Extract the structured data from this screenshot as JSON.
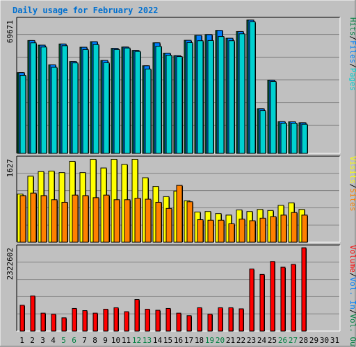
{
  "title": "Daily usage for February 2022",
  "colors": {
    "background": "#c0c0c0",
    "title": "#0070d0",
    "hits": "#008040",
    "files": "#0080ff",
    "pages": "#00d0d0",
    "visits": "#ffff00",
    "sites": "#ff8000",
    "vol_out": "#008040",
    "vol_in": "#0080ff",
    "volume": "#ff0000",
    "weekend_label": "#008040",
    "grid": "#808080"
  },
  "weekend_days": [
    5,
    6,
    12,
    13,
    19,
    20,
    26,
    27
  ],
  "chart_data": [
    {
      "type": "bar",
      "title": "Daily usage for February 2022",
      "panel": "hits-files-pages",
      "ylabel": "69671",
      "ymax": 69671,
      "legend": [
        "Hits",
        "/",
        "Files",
        "/",
        "Pages"
      ],
      "categories": [
        "1",
        "2",
        "3",
        "4",
        "5",
        "6",
        "7",
        "8",
        "9",
        "10",
        "11",
        "12",
        "13",
        "14",
        "15",
        "16",
        "17",
        "18",
        "19",
        "20",
        "21",
        "22",
        "23",
        "24",
        "25",
        "26",
        "27",
        "28",
        "29",
        "30",
        "31"
      ],
      "series": [
        {
          "name": "Hits",
          "values": [
            42200,
            59000,
            56600,
            46300,
            57200,
            48000,
            55500,
            58400,
            48600,
            54900,
            55600,
            53800,
            45800,
            57800,
            52400,
            51100,
            59100,
            61700,
            62100,
            64300,
            60200,
            63700,
            69700,
            23300,
            38300,
            16600,
            16500,
            16000,
            null,
            null,
            null
          ]
        },
        {
          "name": "Files",
          "values": [
            42200,
            59000,
            56600,
            46300,
            57200,
            48000,
            55500,
            58400,
            48600,
            54900,
            55600,
            53800,
            45800,
            57800,
            52400,
            51100,
            59100,
            61700,
            62100,
            64300,
            60200,
            63700,
            69700,
            23300,
            38300,
            16600,
            16500,
            16000,
            null,
            null,
            null
          ]
        },
        {
          "name": "Pages",
          "values": [
            40800,
            57800,
            55600,
            45000,
            56300,
            47300,
            54300,
            56900,
            47400,
            54300,
            55100,
            53300,
            44100,
            56000,
            51300,
            50600,
            57900,
            58900,
            59000,
            61100,
            58900,
            62500,
            68800,
            22300,
            37600,
            15800,
            15800,
            15200,
            null,
            null,
            null
          ]
        }
      ]
    },
    {
      "type": "bar",
      "panel": "visits-sites",
      "ylabel": "1627",
      "ymax": 1627,
      "legend": [
        "Visits",
        "/",
        "Sites"
      ],
      "categories": [
        "1",
        "2",
        "3",
        "4",
        "5",
        "6",
        "7",
        "8",
        "9",
        "10",
        "11",
        "12",
        "13",
        "14",
        "15",
        "16",
        "17",
        "18",
        "19",
        "20",
        "21",
        "22",
        "23",
        "24",
        "25",
        "26",
        "27",
        "28",
        "29",
        "30",
        "31"
      ],
      "series": [
        {
          "name": "Visits",
          "values": [
            940,
            1290,
            1380,
            1390,
            1360,
            1580,
            1360,
            1620,
            1450,
            1620,
            1520,
            1620,
            1260,
            1090,
            890,
            1000,
            810,
            590,
            600,
            560,
            530,
            630,
            600,
            640,
            620,
            720,
            770,
            640,
            null,
            null,
            null
          ]
        },
        {
          "name": "Sites",
          "values": [
            910,
            960,
            910,
            830,
            780,
            920,
            910,
            870,
            920,
            830,
            830,
            860,
            840,
            780,
            660,
            1110,
            790,
            440,
            430,
            430,
            360,
            450,
            420,
            470,
            500,
            530,
            580,
            530,
            null,
            null,
            null
          ]
        }
      ]
    },
    {
      "type": "bar",
      "panel": "volume",
      "ylabel": "2322602",
      "ymax": 2322602,
      "legend": [
        "Volume",
        "/",
        "Vol. In",
        "/",
        "Vol. Out"
      ],
      "categories": [
        "1",
        "2",
        "3",
        "4",
        "5",
        "6",
        "7",
        "8",
        "9",
        "10",
        "11",
        "12",
        "13",
        "14",
        "15",
        "16",
        "17",
        "18",
        "19",
        "20",
        "21",
        "22",
        "23",
        "24",
        "25",
        "26",
        "27",
        "28",
        "29",
        "30",
        "31"
      ],
      "series": [
        {
          "name": "Volume",
          "values": [
            720000,
            980000,
            500000,
            470000,
            370000,
            630000,
            570000,
            500000,
            610000,
            650000,
            540000,
            880000,
            610000,
            580000,
            630000,
            500000,
            430000,
            650000,
            470000,
            650000,
            650000,
            620000,
            1730000,
            1580000,
            1940000,
            1780000,
            1860000,
            2322602,
            null,
            null,
            null
          ]
        }
      ]
    }
  ]
}
